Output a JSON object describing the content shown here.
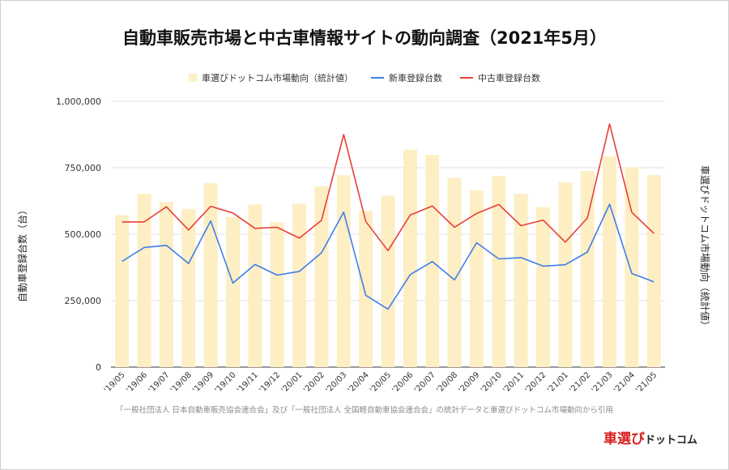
{
  "chart_data": {
    "type": "bar+line",
    "title": "自動車販売市場と中古車情報サイトの動向調査（2021年5月）",
    "ylabel_left": "自動車登録台数（台）",
    "ylabel_right": "車選びドットコム市場動向（統計値）",
    "ylim": [
      0,
      1000000
    ],
    "yticks": [
      0,
      250000,
      500000,
      750000,
      1000000
    ],
    "ytick_labels": [
      "0",
      "250,000",
      "500,000",
      "750,000",
      "1,000,000"
    ],
    "categories": [
      "'19/05",
      "'19/06",
      "'19/07",
      "'19/08",
      "'19/09",
      "'19/10",
      "'19/11",
      "'19/12",
      "'20/01",
      "'20/02",
      "'20/03",
      "'20/04",
      "'20/05",
      "'20/06",
      "'20/07",
      "'20/08",
      "'20/09",
      "'20/10",
      "'20/11",
      "'20/12",
      "'21/01",
      "'21/02",
      "'21/03",
      "'21/04",
      "'21/05"
    ],
    "series": [
      {
        "name": "車選びドットコム市場動向（統計値）",
        "type": "bar",
        "color": "#fdeec4",
        "values": [
          572000,
          652000,
          622000,
          595000,
          692000,
          565000,
          612000,
          545000,
          615000,
          680000,
          722000,
          588000,
          645000,
          818000,
          798000,
          712000,
          665000,
          718000,
          652000,
          602000,
          695000,
          738000,
          792000,
          752000,
          722000
        ]
      },
      {
        "name": "新車登録台数",
        "type": "line",
        "color": "#3f7ee8",
        "values": [
          398000,
          450000,
          458000,
          390000,
          550000,
          316000,
          386000,
          346000,
          360000,
          430000,
          583000,
          270000,
          218000,
          348000,
          397000,
          328000,
          468000,
          407000,
          412000,
          380000,
          385000,
          433000,
          613000,
          352000,
          321000
        ]
      },
      {
        "name": "中古車登録台数",
        "type": "line",
        "color": "#e8403a",
        "values": [
          546000,
          546000,
          603000,
          516000,
          605000,
          580000,
          522000,
          526000,
          485000,
          552000,
          875000,
          548000,
          438000,
          572000,
          606000,
          526000,
          578000,
          612000,
          532000,
          553000,
          470000,
          561000,
          915000,
          582000,
          503000
        ]
      }
    ],
    "legend_position": "top"
  },
  "source_note": "「一般社団法人 日本自動車販売協会連合会」及び「一般社団法人 全国軽自動車協会連合会」の統計データと車選びドットコム市場動向から引用",
  "brand": {
    "part1": "車選び",
    "part2": "ドットコム"
  }
}
